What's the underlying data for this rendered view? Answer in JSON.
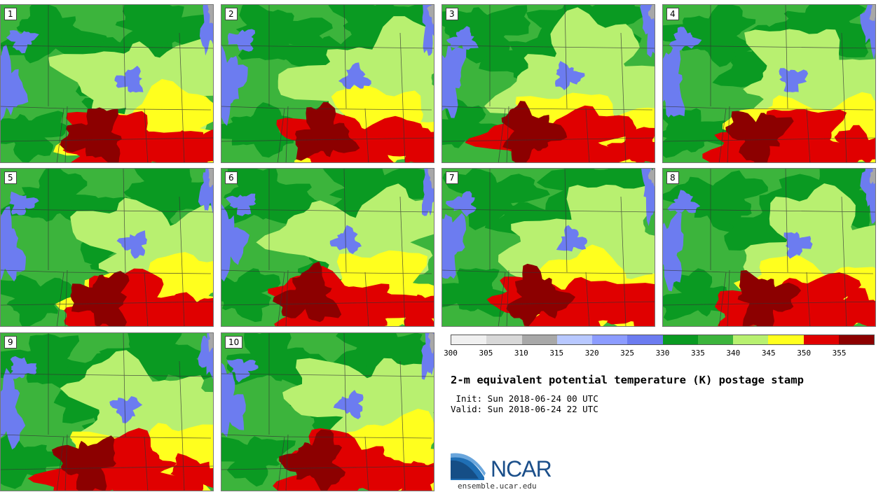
{
  "panels": [
    {
      "label": "1"
    },
    {
      "label": "2"
    },
    {
      "label": "3"
    },
    {
      "label": "4"
    },
    {
      "label": "5"
    },
    {
      "label": "6"
    },
    {
      "label": "7"
    },
    {
      "label": "8"
    },
    {
      "label": "9"
    },
    {
      "label": "10"
    }
  ],
  "colorbar": {
    "colors": [
      "#f0f0f0",
      "#d8d8d8",
      "#a8a8a8",
      "#b8c8ff",
      "#8c9cff",
      "#6c7cf0",
      "#0a9a22",
      "#3cb43c",
      "#b8f070",
      "#ffff1e",
      "#e00000",
      "#8c0000"
    ],
    "tick_labels": [
      "300",
      "305",
      "310",
      "315",
      "320",
      "325",
      "330",
      "335",
      "340",
      "345",
      "350",
      "355"
    ]
  },
  "title": "2-m equivalent potential temperature (K) postage stamp",
  "init_text": " Init: Sun 2018-06-24 00 UTC",
  "valid_text": "Valid: Sun 2018-06-24 22 UTC",
  "logo": {
    "text": "NCAR",
    "url": "ensemble.ucar.edu"
  }
}
